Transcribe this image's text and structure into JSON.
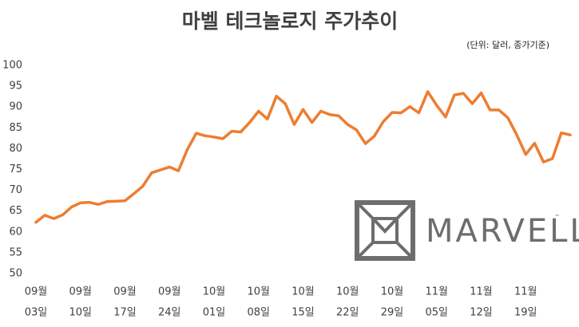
{
  "chart_data": {
    "type": "line",
    "title": "마벨 테크놀로지 주가추이",
    "subtitle": "(단위: 달러, 종가기준)",
    "categories": [
      [
        "09월",
        "03일"
      ],
      null,
      null,
      null,
      null,
      [
        "09월",
        "10일"
      ],
      null,
      null,
      null,
      null,
      [
        "09월",
        "17일"
      ],
      null,
      null,
      null,
      null,
      [
        "09월",
        "24일"
      ],
      null,
      null,
      null,
      null,
      [
        "10월",
        "01일"
      ],
      null,
      null,
      null,
      null,
      [
        "10월",
        "08일"
      ],
      null,
      null,
      null,
      null,
      [
        "10월",
        "15일"
      ],
      null,
      null,
      null,
      null,
      [
        "10월",
        "22일"
      ],
      null,
      null,
      null,
      null,
      [
        "10월",
        "29일"
      ],
      null,
      null,
      null,
      null,
      [
        "11월",
        "05일"
      ],
      null,
      null,
      null,
      null,
      [
        "11월",
        "12일"
      ],
      null,
      null,
      null,
      null,
      [
        "11월",
        "19일"
      ],
      null,
      null,
      null,
      null,
      null
    ],
    "series": [
      {
        "color": "#ed7d31",
        "values": [
          62.3,
          64.0,
          63.2,
          64.1,
          66.0,
          67.0,
          67.1,
          66.6,
          67.3,
          67.4,
          67.5,
          69.2,
          71.0,
          74.2,
          74.9,
          75.6,
          74.7,
          79.8,
          83.7,
          83.1,
          82.8,
          82.4,
          84.2,
          84.0,
          86.3,
          89.0,
          87.1,
          92.6,
          90.8,
          85.8,
          89.4,
          86.3,
          89.0,
          88.2,
          87.9,
          85.8,
          84.5,
          81.2,
          83.0,
          86.5,
          88.7,
          88.6,
          90.1,
          88.6,
          93.7,
          90.4,
          87.6,
          92.9,
          93.3,
          90.8,
          93.4,
          89.3,
          89.3,
          87.4,
          83.3,
          78.6,
          81.3,
          76.8,
          77.6,
          83.8,
          83.3
        ]
      }
    ],
    "ylim": [
      50,
      100
    ],
    "yticks": [
      50,
      55,
      60,
      65,
      70,
      75,
      80,
      85,
      90,
      95,
      100
    ],
    "grid": false
  },
  "logo": {
    "text": "MARVELL",
    "mark": "™"
  }
}
